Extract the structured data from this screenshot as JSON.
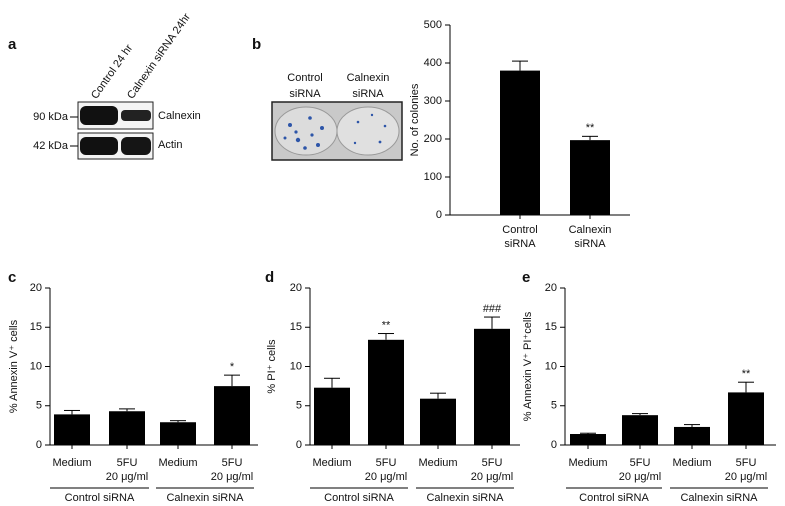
{
  "blot": {
    "label": "a",
    "lanes": [
      "Control 24 hr",
      "Calnexin siRNA 24hr"
    ],
    "rows": [
      {
        "size": "90 kDa",
        "protein": "Calnexin"
      },
      {
        "size": "42 kDa",
        "protein": "Actin"
      }
    ]
  },
  "plate": {
    "label": "b",
    "wells": [
      "Control\nsiRNA",
      "Calnexin\nsiRNA"
    ]
  },
  "chart_data": [
    {
      "type": "bar",
      "panel": "b",
      "ylabel": "No. of colonies",
      "categories": [
        "Control\nsiRNA",
        "Calnexin\nsiRNA"
      ],
      "values": [
        380,
        197
      ],
      "errors": [
        25,
        10
      ],
      "annotations": [
        null,
        "**"
      ],
      "color": "#000000",
      "ylim": [
        0,
        500
      ],
      "yticks": [
        0,
        100,
        200,
        300,
        400,
        500
      ]
    },
    {
      "type": "bar",
      "panel": "c",
      "ylabel": "% Annexin V⁺ cells",
      "categories": [
        "Medium",
        "5FU\n20 μg/ml",
        "Medium",
        "5FU\n20 μg/ml"
      ],
      "groups": [
        "Control siRNA",
        "Calnexin siRNA"
      ],
      "values": [
        3.9,
        4.3,
        2.9,
        7.5
      ],
      "errors": [
        0.5,
        0.3,
        0.2,
        1.4
      ],
      "annotations": [
        null,
        null,
        null,
        "*"
      ],
      "color": "#000000",
      "ylim": [
        0,
        20
      ],
      "yticks": [
        0,
        5,
        10,
        15,
        20
      ]
    },
    {
      "type": "bar",
      "panel": "d",
      "ylabel": "% PI⁺ cells",
      "categories": [
        "Medium",
        "5FU\n20 μg/ml",
        "Medium",
        "5FU\n20 μg/ml"
      ],
      "groups": [
        "Control siRNA",
        "Calnexin siRNA"
      ],
      "values": [
        7.3,
        13.4,
        5.9,
        14.8
      ],
      "errors": [
        1.2,
        0.8,
        0.7,
        1.5
      ],
      "annotations": [
        null,
        "**",
        null,
        "###"
      ],
      "color": "#000000",
      "ylim": [
        0,
        20
      ],
      "yticks": [
        0,
        5,
        10,
        15,
        20
      ]
    },
    {
      "type": "bar",
      "panel": "e",
      "ylabel": "% Annexin V⁺ PI⁺cells",
      "categories": [
        "Medium",
        "5FU\n20 μg/ml",
        "Medium",
        "5FU\n20 μg/ml"
      ],
      "groups": [
        "Control siRNA",
        "Calnexin siRNA"
      ],
      "values": [
        1.4,
        3.8,
        2.3,
        6.7
      ],
      "errors": [
        0.1,
        0.2,
        0.3,
        1.3
      ],
      "annotations": [
        null,
        null,
        null,
        "**"
      ],
      "color": "#000000",
      "ylim": [
        0,
        20
      ],
      "yticks": [
        0,
        5,
        10,
        15,
        20
      ]
    }
  ]
}
